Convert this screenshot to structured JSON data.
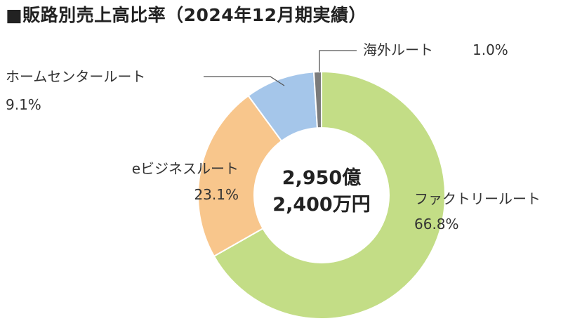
{
  "title": "■販路別売上高比率（2024年12月期実績）",
  "chart_data": {
    "type": "donut",
    "center_text": [
      "2,950億",
      "2,400万円"
    ],
    "slices": [
      {
        "label": "ファクトリールート",
        "value": 66.8,
        "value_label": "66.8%",
        "color": "#c3dd86"
      },
      {
        "label": "eビジネスルート",
        "value": 23.1,
        "value_label": "23.1%",
        "color": "#f8c68c"
      },
      {
        "label": "ホームセンタールート",
        "value": 9.1,
        "value_label": "9.1%",
        "color": "#a5c6ea"
      },
      {
        "label": "海外ルート",
        "value": 1.0,
        "value_label": "1.0%",
        "color": "#7b7b7b"
      }
    ]
  }
}
